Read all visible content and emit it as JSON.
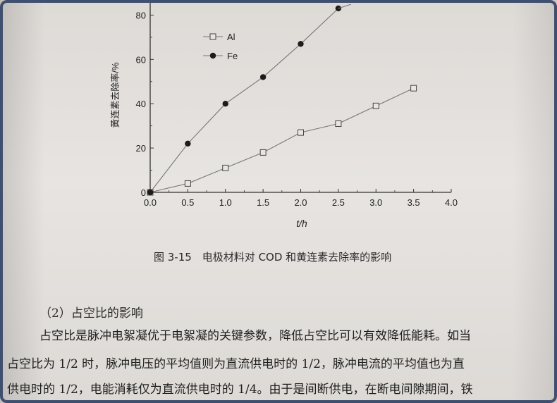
{
  "chart_data": {
    "type": "line",
    "xlabel": "t/h",
    "ylabel": "黄连素去除率/%",
    "xlim": [
      0,
      4.0
    ],
    "ylim": [
      0,
      90
    ],
    "xticks": [
      "0.0",
      "0.5",
      "1.0",
      "1.5",
      "2.0",
      "2.5",
      "3.0",
      "3.5",
      "4.0"
    ],
    "yticks": [
      "0",
      "20",
      "40",
      "60",
      "80"
    ],
    "legend_position": "top-left",
    "series": [
      {
        "name": "Al",
        "marker": "open-square",
        "color": "#555555",
        "x": [
          0,
          0.5,
          1.0,
          1.5,
          2.0,
          2.5,
          3.0,
          3.5
        ],
        "y": [
          0,
          4,
          11,
          18,
          27,
          31,
          39,
          47
        ]
      },
      {
        "name": "Fe",
        "marker": "filled-circle",
        "color": "#222222",
        "x": [
          0,
          0.5,
          1.0,
          1.5,
          2.0,
          2.5
        ],
        "y": [
          0,
          22,
          40,
          52,
          67,
          83
        ]
      }
    ]
  },
  "caption": "图 3-15　电极材料对 COD 和黄连素去除率的影响",
  "section_heading": "（2）占空比的影响",
  "body_lines": [
    "占空比是脉冲电絮凝优于电絮凝的关键参数，降低占空比可以有效降低能耗。如当",
    "占空比为 1/2 时，脉冲电压的平均值则为直流供电时的 1/2，脉冲电流的平均值也为直",
    "供电时的 1/2，电能消耗仅为直流供电时的 1/4。由于是间断供电，在断电间隙期间，铁"
  ]
}
